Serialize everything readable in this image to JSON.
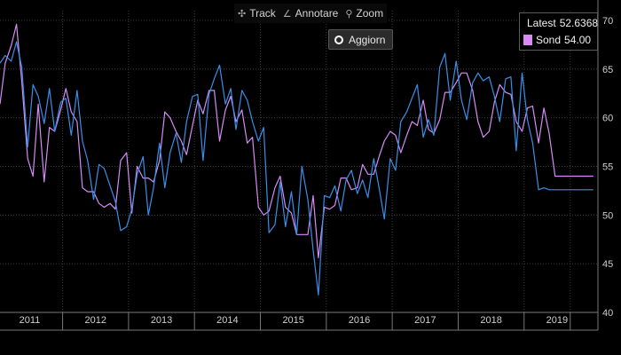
{
  "toolbar": {
    "track_label": "Track",
    "annotate_label": "Annotare",
    "zoom_label": "Zoom",
    "refresh_label": "Aggiorn"
  },
  "colors": {
    "latest": "#3a8fe8",
    "sond": "#d78bf5",
    "grid": "#3c3c3c",
    "axis_text": "#cfcfcf"
  },
  "legend": {
    "items": [
      {
        "name": "Latest",
        "value": "52.6368"
      },
      {
        "name": "Sond",
        "value": "54.00"
      }
    ]
  },
  "chart_data": {
    "type": "line",
    "title": "",
    "xlabel": "",
    "ylabel": "",
    "ylim": [
      40,
      71
    ],
    "yticks": [
      40,
      45,
      50,
      55,
      60,
      65,
      70
    ],
    "xlim": [
      2010.55,
      2019.62
    ],
    "year_labels": [
      "2011",
      "2012",
      "2013",
      "2014",
      "2015",
      "2016",
      "2017",
      "2018",
      "2019"
    ],
    "year_centers": [
      2011.0,
      2012.0,
      2013.0,
      2014.0,
      2015.0,
      2016.0,
      2017.0,
      2018.0,
      2019.0
    ],
    "year_boundaries": [
      2011.5,
      2012.5,
      2013.5,
      2014.5,
      2015.5,
      2016.5,
      2017.5,
      2018.5,
      2019.2
    ],
    "series": [
      {
        "name": "Latest",
        "x": [
          2010.55,
          2010.63,
          2010.72,
          2010.8,
          2010.88,
          2010.97,
          2011.05,
          2011.13,
          2011.22,
          2011.3,
          2011.38,
          2011.47,
          2011.55,
          2011.63,
          2011.72,
          2011.8,
          2011.88,
          2011.97,
          2012.05,
          2012.13,
          2012.22,
          2012.3,
          2012.38,
          2012.47,
          2012.55,
          2012.63,
          2012.72,
          2012.8,
          2012.88,
          2012.97,
          2013.05,
          2013.13,
          2013.22,
          2013.3,
          2013.38,
          2013.47,
          2013.55,
          2013.63,
          2013.72,
          2013.8,
          2013.88,
          2013.97,
          2014.05,
          2014.13,
          2014.22,
          2014.3,
          2014.38,
          2014.47,
          2014.55,
          2014.63,
          2014.72,
          2014.8,
          2014.88,
          2014.97,
          2015.05,
          2015.13,
          2015.22,
          2015.3,
          2015.38,
          2015.47,
          2015.55,
          2015.63,
          2015.72,
          2015.8,
          2015.88,
          2015.97,
          2016.05,
          2016.13,
          2016.22,
          2016.3,
          2016.38,
          2016.47,
          2016.55,
          2016.63,
          2016.72,
          2016.8,
          2016.88,
          2016.97,
          2017.05,
          2017.13,
          2017.22,
          2017.3,
          2017.38,
          2017.47,
          2017.55,
          2017.63,
          2017.72,
          2017.8,
          2017.88,
          2017.97,
          2018.05,
          2018.13,
          2018.22,
          2018.3,
          2018.38,
          2018.47,
          2018.55,
          2018.63,
          2018.72,
          2018.8,
          2018.88,
          2018.97,
          2019.05,
          2019.13,
          2019.22,
          2019.3,
          2019.38,
          2019.47,
          2019.55
        ],
        "values": [
          65.6,
          66.4,
          65.8,
          67.8,
          65.2,
          57.0,
          63.4,
          62.2,
          59.4,
          63.0,
          58.6,
          61.6,
          62.0,
          58.2,
          62.8,
          57.6,
          55.6,
          51.6,
          55.2,
          54.8,
          53.0,
          51.4,
          48.4,
          48.8,
          50.6,
          54.2,
          56.0,
          50.0,
          52.8,
          57.4,
          52.8,
          56.4,
          58.4,
          55.4,
          59.6,
          62.2,
          62.4,
          55.6,
          62.4,
          64.0,
          65.4,
          61.4,
          63.0,
          58.8,
          62.8,
          61.8,
          59.6,
          57.6,
          59.0,
          48.2,
          49.0,
          53.4,
          48.8,
          52.4,
          48.0,
          55.0,
          51.6,
          46.4,
          41.8,
          52.0,
          51.8,
          53.0,
          50.4,
          53.6,
          54.6,
          52.2,
          53.6,
          51.8,
          55.8,
          52.8,
          49.6,
          55.8,
          54.6,
          59.6,
          60.6,
          62.0,
          63.4,
          58.0,
          59.8,
          58.2,
          65.2,
          66.6,
          61.8,
          65.8,
          61.8,
          59.8,
          63.6,
          64.6,
          63.8,
          64.2,
          62.2,
          59.6,
          64.0,
          64.2,
          56.6,
          64.6,
          59.8,
          57.4,
          52.6,
          52.8,
          52.6,
          52.6,
          52.6,
          52.6,
          52.6,
          52.6,
          52.6,
          52.6,
          52.6
        ]
      },
      {
        "name": "Sond",
        "x": [
          2010.55,
          2010.63,
          2010.72,
          2010.8,
          2010.88,
          2010.97,
          2011.05,
          2011.13,
          2011.22,
          2011.3,
          2011.38,
          2011.47,
          2011.55,
          2011.63,
          2011.72,
          2011.8,
          2011.88,
          2011.97,
          2012.05,
          2012.13,
          2012.22,
          2012.3,
          2012.38,
          2012.47,
          2012.55,
          2012.63,
          2012.72,
          2012.8,
          2012.88,
          2012.97,
          2013.05,
          2013.13,
          2013.22,
          2013.3,
          2013.38,
          2013.47,
          2013.55,
          2013.63,
          2013.72,
          2013.8,
          2013.88,
          2013.97,
          2014.05,
          2014.13,
          2014.22,
          2014.3,
          2014.38,
          2014.47,
          2014.55,
          2014.63,
          2014.72,
          2014.8,
          2014.88,
          2014.97,
          2015.05,
          2015.13,
          2015.22,
          2015.3,
          2015.38,
          2015.47,
          2015.55,
          2015.63,
          2015.72,
          2015.8,
          2015.88,
          2015.97,
          2016.05,
          2016.13,
          2016.22,
          2016.3,
          2016.38,
          2016.47,
          2016.55,
          2016.63,
          2016.72,
          2016.8,
          2016.88,
          2016.97,
          2017.05,
          2017.13,
          2017.22,
          2017.3,
          2017.38,
          2017.47,
          2017.55,
          2017.63,
          2017.72,
          2017.8,
          2017.88,
          2017.97,
          2018.05,
          2018.13,
          2018.22,
          2018.3,
          2018.38,
          2018.47,
          2018.55,
          2018.63,
          2018.72,
          2018.8,
          2018.88,
          2018.97,
          2019.05,
          2019.13,
          2019.22,
          2019.3,
          2019.38,
          2019.47,
          2019.55
        ],
        "values": [
          61.4,
          65.6,
          67.4,
          69.6,
          63.8,
          55.8,
          54.0,
          61.4,
          53.4,
          59.0,
          58.6,
          60.8,
          63.0,
          60.6,
          59.6,
          52.8,
          52.4,
          52.4,
          51.2,
          50.8,
          51.2,
          50.6,
          55.6,
          56.4,
          50.2,
          55.0,
          53.8,
          53.8,
          53.4,
          55.6,
          60.6,
          60.0,
          58.6,
          57.6,
          56.2,
          59.2,
          61.8,
          60.4,
          62.8,
          62.8,
          57.6,
          60.8,
          62.2,
          59.6,
          60.8,
          57.4,
          58.0,
          50.8,
          50.0,
          50.4,
          52.8,
          54.0,
          50.8,
          50.2,
          48.0,
          48.0,
          48.0,
          52.0,
          45.6,
          50.8,
          50.6,
          51.0,
          53.8,
          53.8,
          52.6,
          52.8,
          55.2,
          54.2,
          54.2,
          56.0,
          57.6,
          58.6,
          58.2,
          56.4,
          58.2,
          59.6,
          59.2,
          61.8,
          58.8,
          58.4,
          59.8,
          62.6,
          62.6,
          63.6,
          64.6,
          64.6,
          62.8,
          59.6,
          58.0,
          58.6,
          61.6,
          63.4,
          62.6,
          62.4,
          59.6,
          58.6,
          61.0,
          61.2,
          57.4,
          61.0,
          58.4,
          54.0,
          54.0,
          54.0,
          54.0,
          54.0,
          54.0,
          54.0,
          54.0
        ]
      }
    ]
  }
}
